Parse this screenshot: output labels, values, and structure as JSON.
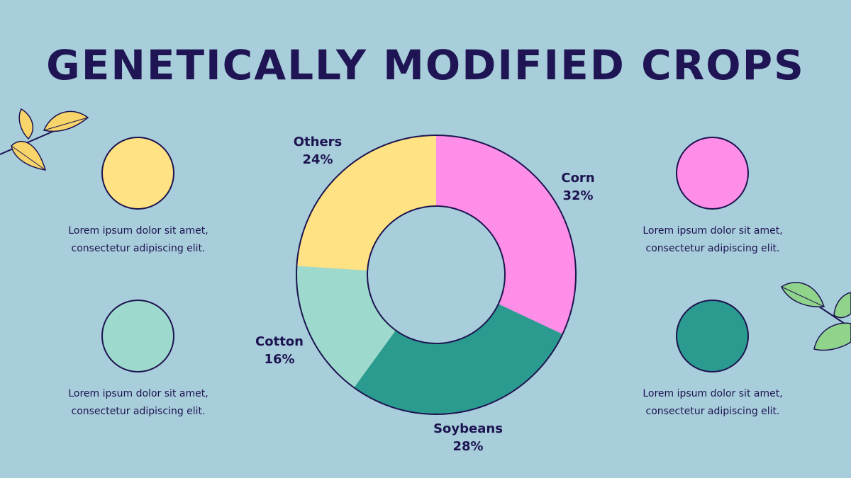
{
  "title": "GENETICALLY MODIFIED CROPS",
  "legend": [
    {
      "color": "#ffe283",
      "line1": "Lorem ipsum dolor sit amet,",
      "line2": "consectetur adipiscing elit."
    },
    {
      "color": "#9dd9cc",
      "line1": "Lorem ipsum dolor sit amet,",
      "line2": "consectetur adipiscing elit."
    },
    {
      "color": "#ff8ee8",
      "line1": "Lorem ipsum dolor sit amet,",
      "line2": "consectetur adipiscing elit."
    },
    {
      "color": "#2b9b8f",
      "line1": "Lorem ipsum dolor sit amet,",
      "line2": "consectetur adipiscing elit."
    }
  ],
  "chart_data": {
    "type": "pie",
    "title": "GENETICALLY MODIFIED CROPS",
    "donut": true,
    "slices": [
      {
        "label": "Corn",
        "value": 32,
        "display": "32%",
        "color": "#ff8ee8"
      },
      {
        "label": "Soybeans",
        "value": 28,
        "display": "28%",
        "color": "#2b9b8f"
      },
      {
        "label": "Cotton",
        "value": 16,
        "display": "16%",
        "color": "#9dd9cc"
      },
      {
        "label": "Others",
        "value": 24,
        "display": "24%",
        "color": "#ffe283"
      }
    ]
  },
  "decor": {
    "leaf_yellow": "#f7d56b",
    "leaf_green": "#8fd48a",
    "outline": "#1c1450"
  }
}
